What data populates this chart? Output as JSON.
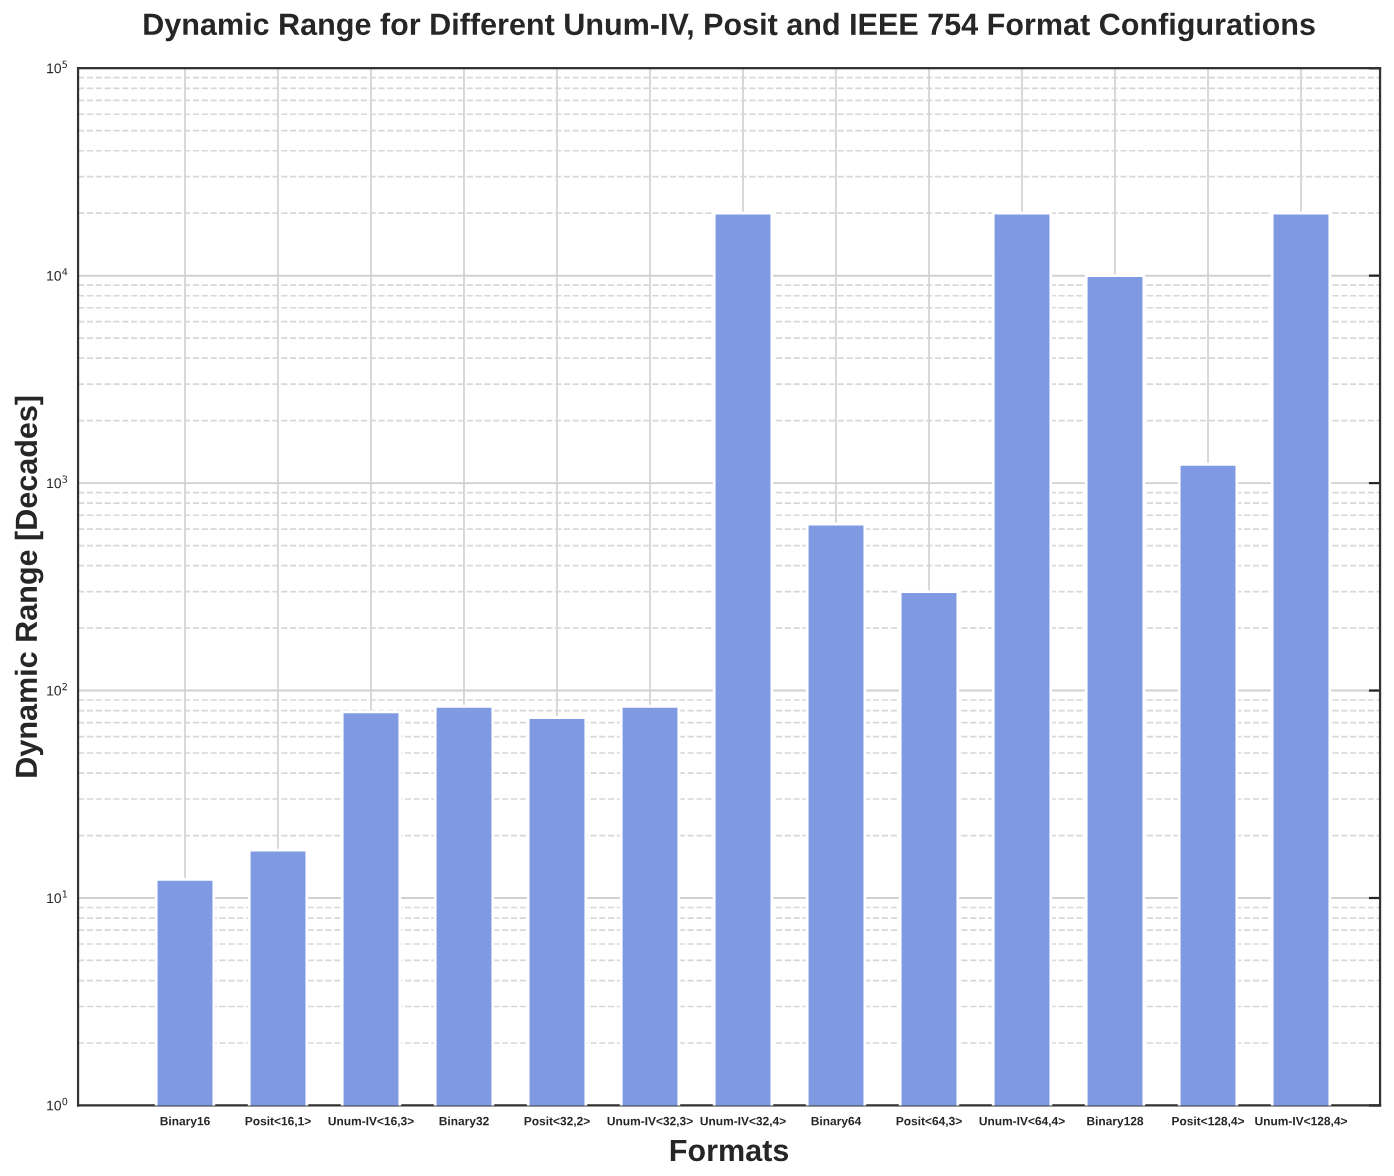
{
  "chart_data": {
    "type": "bar",
    "title": "Dynamic Range for Different Unum-IV, Posit and IEEE 754 Format Configurations",
    "xlabel": "Formats",
    "ylabel": "Dynamic Range [Decades]",
    "categories": [
      "Binary16",
      "Posit<16,1>",
      "Unum-IV<16,3>",
      "Binary32",
      "Posit<32,2>",
      "Unum-IV<32,3>",
      "Unum-IV<32,4>",
      "Binary64",
      "Posit<64,3>",
      "Unum-IV<64,4>",
      "Binary128",
      "Posit<128,4>",
      "Unum-IV<128,4>"
    ],
    "values": [
      12.3,
      17,
      79,
      84,
      74,
      84,
      20000,
      635,
      300,
      20000,
      10000,
      1230,
      20000
    ],
    "color": "#7f99e3",
    "log": true,
    "ylim": [
      1,
      100000
    ],
    "yticks": [
      {
        "value": 1,
        "label": "10$^{0}$"
      },
      {
        "value": 10,
        "label": "10$^{1}$"
      },
      {
        "value": 100,
        "label": "10$^{2}$"
      },
      {
        "value": 1000,
        "label": "10$^{3}$"
      },
      {
        "value": 10000,
        "label": "10$^{4}$"
      },
      {
        "value": 100000,
        "label": "10$^{5}$"
      }
    ],
    "grid": true
  }
}
